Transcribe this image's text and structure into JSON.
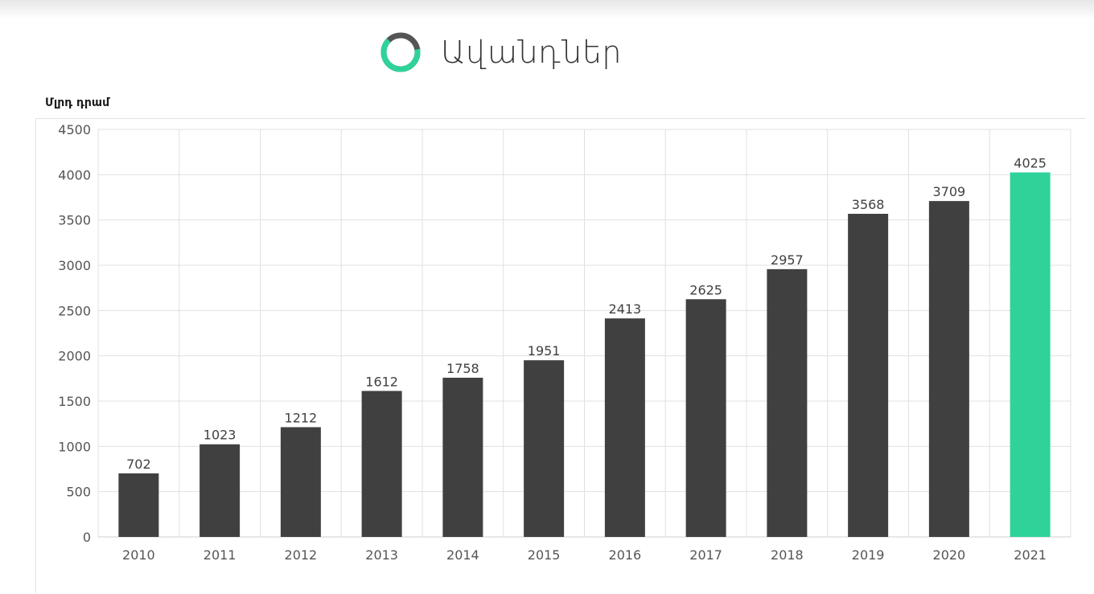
{
  "header": {
    "title": "Ավանդներ",
    "icon": "ring-progress-icon"
  },
  "colors": {
    "bar": "#404040",
    "highlight": "#2fd39a",
    "grid": "#e0e0e0",
    "ring_track": "#555555",
    "ring_accent": "#2fd39a"
  },
  "chart_data": {
    "type": "bar",
    "title": "Ավանդներ",
    "ylabel": "Մլրդ դրամ",
    "xlabel": "",
    "categories": [
      "2010",
      "2011",
      "2012",
      "2013",
      "2014",
      "2015",
      "2016",
      "2017",
      "2018",
      "2019",
      "2020",
      "2021"
    ],
    "values": [
      702,
      1023,
      1212,
      1612,
      1758,
      1951,
      2413,
      2625,
      2957,
      3568,
      3709,
      4025
    ],
    "highlight_index": 11,
    "ylim": [
      0,
      4500
    ],
    "yticks": [
      0,
      500,
      1000,
      1500,
      2000,
      2500,
      3000,
      3500,
      4000,
      4500
    ],
    "grid": true,
    "data_labels": true,
    "legend": "none"
  }
}
